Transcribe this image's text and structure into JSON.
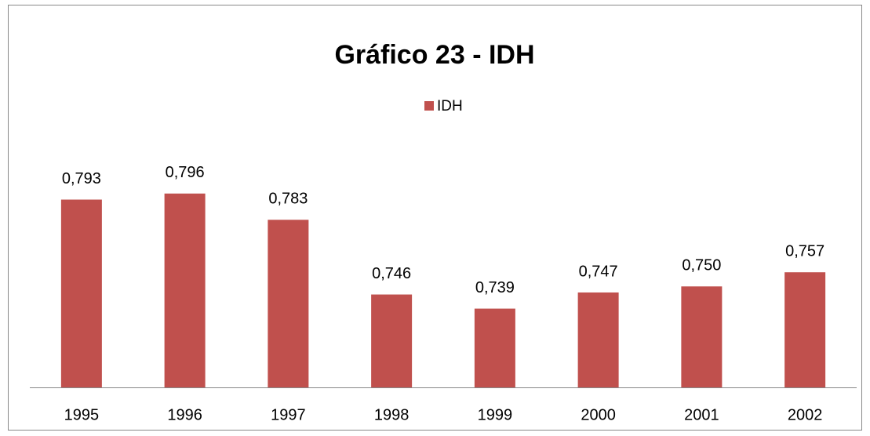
{
  "chart_data": {
    "type": "bar",
    "title": "Gráfico 23 - IDH",
    "categories": [
      "1995",
      "1996",
      "1997",
      "1998",
      "1999",
      "2000",
      "2001",
      "2002"
    ],
    "series": [
      {
        "name": "IDH",
        "color": "#c0504d",
        "values": [
          0.793,
          0.796,
          0.783,
          0.746,
          0.739,
          0.747,
          0.75,
          0.757
        ],
        "value_labels": [
          "0,793",
          "0,796",
          "0,783",
          "0,746",
          "0,739",
          "0,747",
          "0,750",
          "0,757"
        ]
      }
    ],
    "ylim": [
      0.7,
      0.82
    ],
    "legend": "top"
  }
}
